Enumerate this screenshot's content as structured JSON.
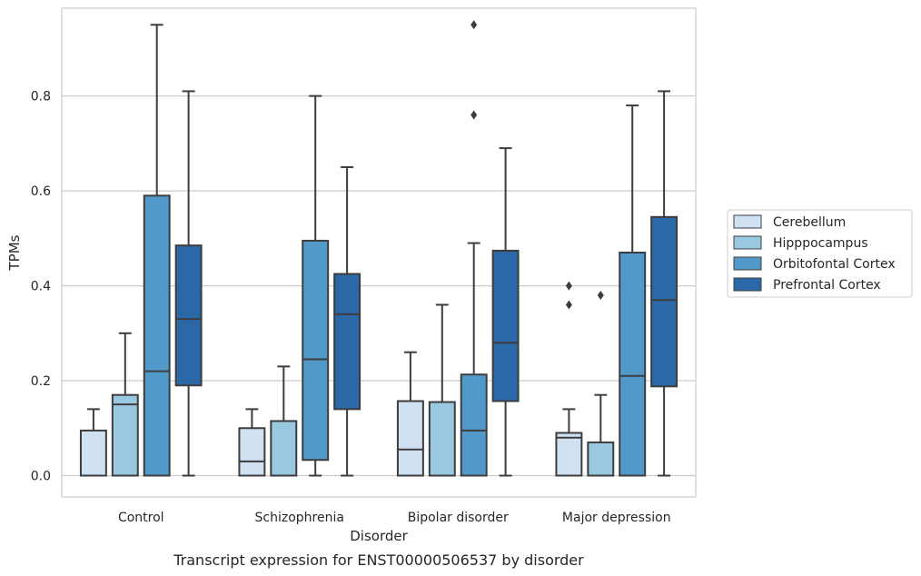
{
  "chart_data": {
    "type": "box",
    "caption": "Transcript expression for ENST00000506537 by disorder",
    "xlabel": "Disorder",
    "ylabel": "TPMs",
    "ylim": [
      -0.045,
      0.985
    ],
    "yticks": [
      "0.0",
      "0.2",
      "0.4",
      "0.6",
      "0.8"
    ],
    "grid": true,
    "legend_position": "right",
    "categories": [
      "Control",
      "Schizophrenia",
      "Bipolar disorder",
      "Major depression"
    ],
    "series": [
      {
        "name": "Cerebellum",
        "color": "#d0e1f2",
        "boxes": [
          {
            "whislo": 0.0,
            "q1": 0.0,
            "med": 0.0,
            "q3": 0.095,
            "whishi": 0.14,
            "fliers": []
          },
          {
            "whislo": 0.0,
            "q1": 0.0,
            "med": 0.03,
            "q3": 0.1,
            "whishi": 0.14,
            "fliers": []
          },
          {
            "whislo": 0.0,
            "q1": 0.0,
            "med": 0.055,
            "q3": 0.157,
            "whishi": 0.26,
            "fliers": []
          },
          {
            "whislo": 0.0,
            "q1": 0.0,
            "med": 0.08,
            "q3": 0.09,
            "whishi": 0.14,
            "fliers": [
              0.36,
              0.4
            ]
          }
        ]
      },
      {
        "name": "Hipppocampus",
        "color": "#9ac8e0",
        "boxes": [
          {
            "whislo": 0.0,
            "q1": 0.0,
            "med": 0.15,
            "q3": 0.17,
            "whishi": 0.3,
            "fliers": []
          },
          {
            "whislo": 0.0,
            "q1": 0.0,
            "med": 0.0,
            "q3": 0.115,
            "whishi": 0.23,
            "fliers": []
          },
          {
            "whislo": 0.0,
            "q1": 0.0,
            "med": 0.0,
            "q3": 0.155,
            "whishi": 0.36,
            "fliers": []
          },
          {
            "whislo": 0.0,
            "q1": 0.0,
            "med": 0.0,
            "q3": 0.07,
            "whishi": 0.17,
            "fliers": [
              0.38
            ]
          }
        ]
      },
      {
        "name": "Orbitofontal Cortex",
        "color": "#5299cb",
        "boxes": [
          {
            "whislo": 0.0,
            "q1": 0.0,
            "med": 0.22,
            "q3": 0.59,
            "whishi": 0.95,
            "fliers": []
          },
          {
            "whislo": 0.0,
            "q1": 0.033,
            "med": 0.245,
            "q3": 0.495,
            "whishi": 0.8,
            "fliers": []
          },
          {
            "whislo": 0.0,
            "q1": 0.0,
            "med": 0.095,
            "q3": 0.213,
            "whishi": 0.49,
            "fliers": [
              0.76,
              0.95
            ]
          },
          {
            "whislo": 0.0,
            "q1": 0.0,
            "med": 0.21,
            "q3": 0.47,
            "whishi": 0.78,
            "fliers": []
          }
        ]
      },
      {
        "name": "Prefrontal Cortex",
        "color": "#2a68a8",
        "boxes": [
          {
            "whislo": 0.0,
            "q1": 0.19,
            "med": 0.33,
            "q3": 0.485,
            "whishi": 0.81,
            "fliers": []
          },
          {
            "whislo": 0.0,
            "q1": 0.14,
            "med": 0.34,
            "q3": 0.425,
            "whishi": 0.65,
            "fliers": []
          },
          {
            "whislo": 0.0,
            "q1": 0.157,
            "med": 0.28,
            "q3": 0.474,
            "whishi": 0.69,
            "fliers": []
          },
          {
            "whislo": 0.0,
            "q1": 0.188,
            "med": 0.37,
            "q3": 0.545,
            "whishi": 0.81,
            "fliers": []
          }
        ]
      }
    ]
  }
}
